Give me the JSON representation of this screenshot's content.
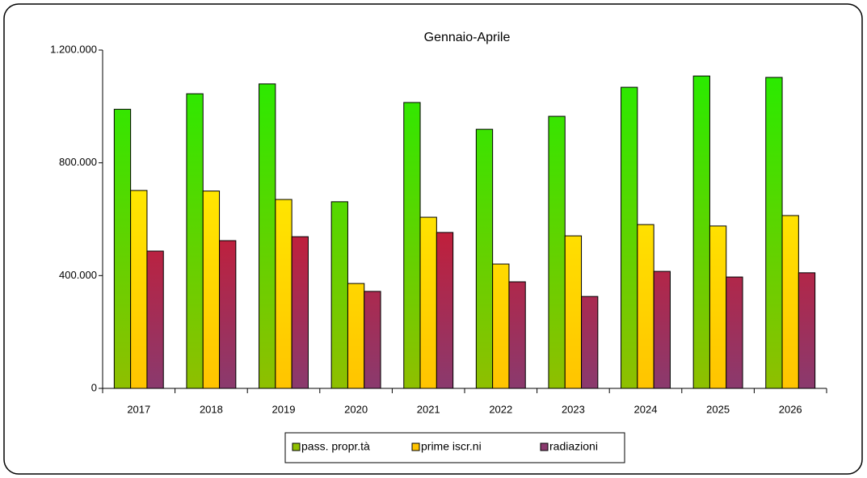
{
  "chart_data": {
    "type": "bar",
    "title": "Gennaio-Aprile",
    "categories": [
      "2017",
      "2018",
      "2019",
      "2020",
      "2021",
      "2022",
      "2023",
      "2024",
      "2025",
      "2026"
    ],
    "series": [
      {
        "name": "pass. propr.tà",
        "color": "#22ee00",
        "color_bottom": "#8fbf00",
        "values": [
          990000,
          1045000,
          1080000,
          662000,
          1014000,
          919000,
          965000,
          1068000,
          1108000,
          1103000
        ]
      },
      {
        "name": "prime iscr.ni",
        "color": "#ffff00",
        "color_bottom": "#ffc400",
        "values": [
          702000,
          700000,
          670000,
          372000,
          607000,
          441000,
          541000,
          581000,
          576000,
          613000
        ]
      },
      {
        "name": "radiazioni",
        "color": "#ff0000",
        "color_bottom": "#8a3a6e",
        "values": [
          487000,
          524000,
          538000,
          344000,
          553000,
          378000,
          326000,
          415000,
          395000,
          410000
        ]
      }
    ],
    "ylim": [
      0,
      1200000
    ],
    "yticks": [
      0,
      {
        "value": 400000,
        "label": "400.000"
      },
      {
        "value": 800000,
        "label": "800.000"
      },
      {
        "value": 1200000,
        "label": "1.200.000"
      }
    ],
    "legend": "bottom"
  }
}
